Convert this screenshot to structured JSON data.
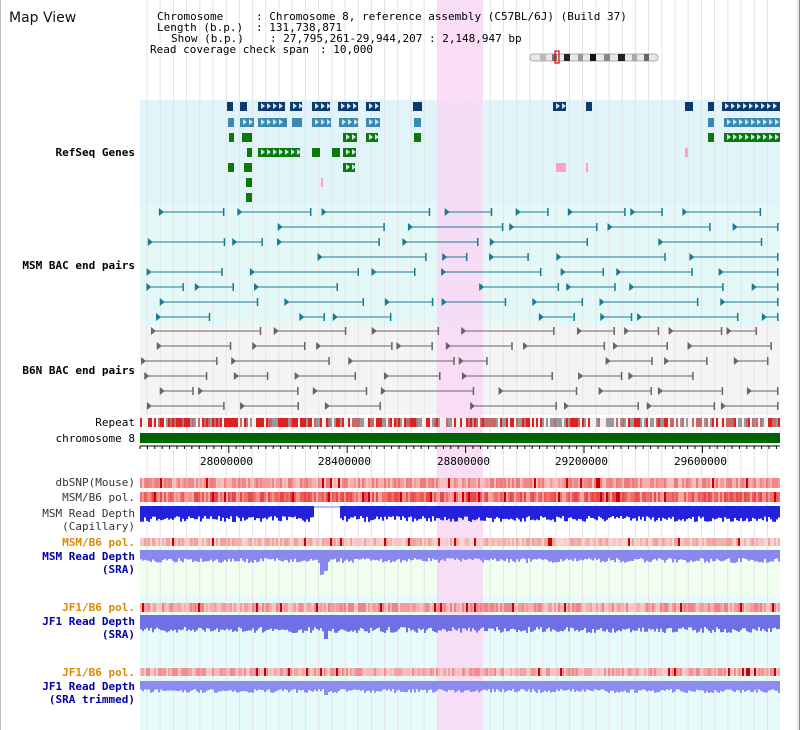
{
  "page_title": "Map View",
  "info": {
    "chromosome_label": "Chromosome",
    "chromosome_value": "Chromosome 8, reference assembly (C57BL/6J) (Build 37)",
    "length_label": "Length (b.p.)",
    "length_value": "131,738,871",
    "show_label": "Show (b.p.)",
    "show_value": "27,795,261-29,944,207 : 2,148,947 bp",
    "coverage_label": "Read coverage check span",
    "coverage_value": "10,000"
  },
  "tracks": {
    "refseq": "RefSeq Genes",
    "msm_bac": "MSM BAC end pairs",
    "b6n_bac": "B6N BAC end pairs",
    "repeat": "Repeat",
    "chromosome": "chromosome 8",
    "dbsnp": "dbSNP(Mouse)",
    "msm_b6_pol_1": "MSM/B6 pol.",
    "msm_depth_cap_1": "MSM Read Depth",
    "msm_depth_cap_2": "(Capillary)",
    "msm_b6_pol_2": "MSM/B6 pol.",
    "msm_depth_sra_1": "MSM Read Depth",
    "msm_depth_sra_2": "(SRA)",
    "jf1_b6_pol_1": "JF1/B6 pol.",
    "jf1_depth_sra_1": "JF1 Read Depth",
    "jf1_depth_sra_2": "(SRA)",
    "jf1_b6_pol_2": "JF1/B6 pol.",
    "jf1_depth_trim_1": "JF1 Read Depth",
    "jf1_depth_trim_2": "(SRA trimmed)"
  },
  "axis": {
    "ticks": [
      "28000000",
      "28400000",
      "28800000",
      "29200000",
      "29600000"
    ]
  },
  "colors": {
    "refseq_bg": "#e0f4fa",
    "msm_bac_bg": "#e4f8f8",
    "b6n_bac_bg": "#f4f4f4",
    "highlight": "#f8d8f4",
    "chromosome": "#006400",
    "refseq_label": "#000099",
    "msm_bac_label": "#006680",
    "b6n_bac_label": "#444444",
    "jf1_pol_label": "#e08800",
    "depth_label": "#0000aa"
  }
}
